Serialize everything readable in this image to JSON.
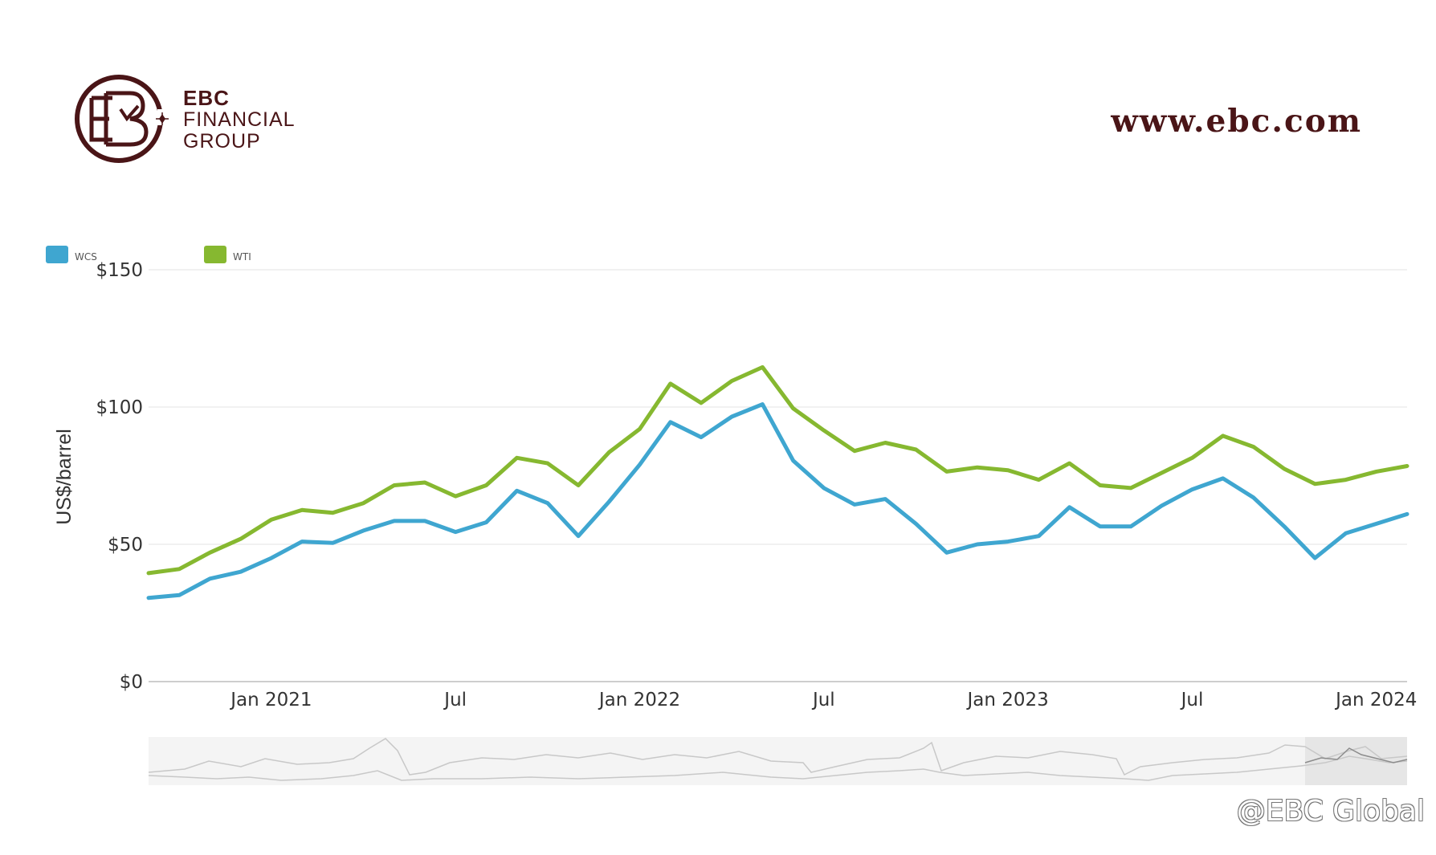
{
  "logo": {
    "line1": "EBC",
    "line2": "FINANCIAL",
    "line3": "GROUP"
  },
  "site_url": "www.ebc.com",
  "watermark": "@EBC Global",
  "colors": {
    "brand": "#4a1517",
    "wcs": "#3fa6d0",
    "wti": "#86b830",
    "grid": "#e3e3e3",
    "axis": "#bdbdbd"
  },
  "chart_data": {
    "type": "line",
    "title": "",
    "xlabel": "",
    "ylabel": "US$/barrel",
    "ylim": [
      0,
      150
    ],
    "y_ticks": [
      {
        "value": 0,
        "label": "$0"
      },
      {
        "value": 50,
        "label": "$50"
      },
      {
        "value": 100,
        "label": "$100"
      },
      {
        "value": 150,
        "label": "$150"
      }
    ],
    "x_range": [
      "2020-09",
      "2024-02"
    ],
    "x_ticks": [
      {
        "date": "2021-01",
        "label": "Jan 2021"
      },
      {
        "date": "2021-07",
        "label": "Jul"
      },
      {
        "date": "2022-01",
        "label": "Jan 2022"
      },
      {
        "date": "2022-07",
        "label": "Jul"
      },
      {
        "date": "2023-01",
        "label": "Jan 2023"
      },
      {
        "date": "2023-07",
        "label": "Jul"
      },
      {
        "date": "2024-01",
        "label": "Jan 2024"
      }
    ],
    "grid": true,
    "legend_position": "top-left",
    "x": [
      "2020-09",
      "2020-10",
      "2020-11",
      "2020-12",
      "2021-01",
      "2021-02",
      "2021-03",
      "2021-04",
      "2021-05",
      "2021-06",
      "2021-07",
      "2021-08",
      "2021-09",
      "2021-10",
      "2021-11",
      "2021-12",
      "2022-01",
      "2022-02",
      "2022-03",
      "2022-04",
      "2022-05",
      "2022-06",
      "2022-07",
      "2022-08",
      "2022-09",
      "2022-10",
      "2022-11",
      "2022-12",
      "2023-01",
      "2023-02",
      "2023-03",
      "2023-04",
      "2023-05",
      "2023-06",
      "2023-07",
      "2023-08",
      "2023-09",
      "2023-10",
      "2023-11",
      "2023-12",
      "2024-01",
      "2024-02"
    ],
    "series": [
      {
        "name": "WCS",
        "color": "#3fa6d0",
        "values": [
          30.5,
          31.5,
          37.5,
          40,
          45,
          51,
          50.5,
          55,
          58.5,
          58.5,
          54.5,
          58,
          69.5,
          65,
          53,
          65.5,
          79,
          94.5,
          89,
          96.5,
          101,
          80.5,
          70.5,
          64.5,
          66.5,
          57.5,
          47,
          50,
          51,
          53,
          63.5,
          56.5,
          56.5,
          64,
          70,
          74,
          67,
          56.5,
          45,
          54,
          57.5,
          61
        ]
      },
      {
        "name": "WTI",
        "color": "#86b830",
        "values": [
          39.5,
          41,
          47,
          52,
          59,
          62.5,
          61.5,
          65,
          71.5,
          72.5,
          67.5,
          71.5,
          81.5,
          79.5,
          71.5,
          83.5,
          92,
          108.5,
          101.5,
          109.5,
          114.5,
          99.5,
          91.5,
          84,
          87,
          84.5,
          76.5,
          78,
          77,
          73.5,
          79.5,
          71.5,
          70.5,
          76,
          81.5,
          89.5,
          85.5,
          77.5,
          72,
          73.5,
          76.5,
          78.5
        ]
      }
    ]
  }
}
